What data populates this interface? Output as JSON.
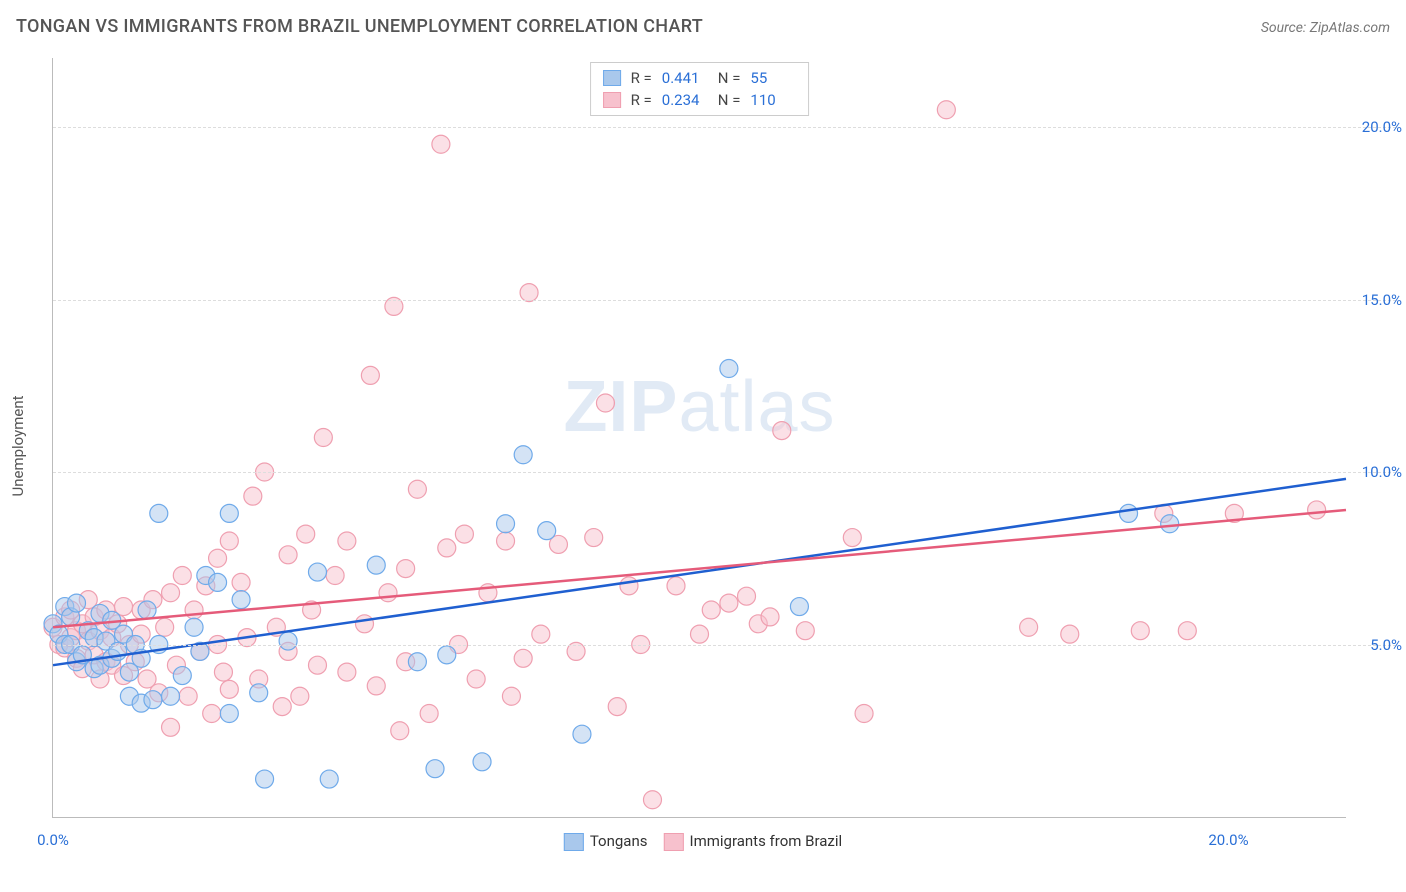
{
  "chart": {
    "type": "scatter",
    "title": "TONGAN VS IMMIGRANTS FROM BRAZIL UNEMPLOYMENT CORRELATION CHART",
    "source": "Source: ZipAtlas.com",
    "ylabel": "Unemployment",
    "watermark": {
      "zip": "ZIP",
      "atlas": "atlas"
    },
    "background_color": "#ffffff",
    "grid_color": "#dddddd",
    "axis_color": "#bbbbbb",
    "tick_label_color": "#2a6fd6",
    "title_color": "#555555",
    "xlim": [
      0,
      22
    ],
    "ylim": [
      0,
      22
    ],
    "yticks": [
      {
        "v": 5,
        "label": "5.0%"
      },
      {
        "v": 10,
        "label": "10.0%"
      },
      {
        "v": 15,
        "label": "15.0%"
      },
      {
        "v": 20,
        "label": "20.0%"
      }
    ],
    "xticks": [
      {
        "v": 0,
        "label": "0.0%"
      },
      {
        "v": 20,
        "label": "20.0%"
      }
    ],
    "marker_radius": 9,
    "marker_opacity": 0.5,
    "line_width": 2.5,
    "series": [
      {
        "id": "tongans",
        "label": "Tongans",
        "fill": "#a9c8ec",
        "stroke": "#6faaea",
        "line_color": "#1f5fd0",
        "R": "0.441",
        "N": "55",
        "trend": {
          "x1": 0,
          "y1": 4.4,
          "x2": 22,
          "y2": 9.8
        },
        "points": [
          [
            0.0,
            5.6
          ],
          [
            0.1,
            5.3
          ],
          [
            0.2,
            6.1
          ],
          [
            0.2,
            5.0
          ],
          [
            0.3,
            5.8
          ],
          [
            0.3,
            5.0
          ],
          [
            0.4,
            4.5
          ],
          [
            0.4,
            6.2
          ],
          [
            0.5,
            4.7
          ],
          [
            0.6,
            5.4
          ],
          [
            0.7,
            5.2
          ],
          [
            0.7,
            4.3
          ],
          [
            0.8,
            5.9
          ],
          [
            0.8,
            4.4
          ],
          [
            0.9,
            5.1
          ],
          [
            1.0,
            4.6
          ],
          [
            1.0,
            5.7
          ],
          [
            1.1,
            4.8
          ],
          [
            1.2,
            5.3
          ],
          [
            1.3,
            4.2
          ],
          [
            1.3,
            3.5
          ],
          [
            1.4,
            5.0
          ],
          [
            1.5,
            3.3
          ],
          [
            1.5,
            4.6
          ],
          [
            1.6,
            6.0
          ],
          [
            1.7,
            3.4
          ],
          [
            1.8,
            5.0
          ],
          [
            1.8,
            8.8
          ],
          [
            2.0,
            3.5
          ],
          [
            2.2,
            4.1
          ],
          [
            2.4,
            5.5
          ],
          [
            2.5,
            4.8
          ],
          [
            2.6,
            7.0
          ],
          [
            2.8,
            6.8
          ],
          [
            3.0,
            3.0
          ],
          [
            3.0,
            8.8
          ],
          [
            3.2,
            6.3
          ],
          [
            3.5,
            3.6
          ],
          [
            3.6,
            1.1
          ],
          [
            4.0,
            5.1
          ],
          [
            4.5,
            7.1
          ],
          [
            4.7,
            1.1
          ],
          [
            5.5,
            7.3
          ],
          [
            6.2,
            4.5
          ],
          [
            6.5,
            1.4
          ],
          [
            6.7,
            4.7
          ],
          [
            7.3,
            1.6
          ],
          [
            7.7,
            8.5
          ],
          [
            8.0,
            10.5
          ],
          [
            8.4,
            8.3
          ],
          [
            9.0,
            2.4
          ],
          [
            11.5,
            13.0
          ],
          [
            12.7,
            6.1
          ],
          [
            18.3,
            8.8
          ],
          [
            19.0,
            8.5
          ]
        ]
      },
      {
        "id": "brazil",
        "label": "Immigrants from Brazil",
        "fill": "#f7c1cd",
        "stroke": "#ef9fb0",
        "line_color": "#e55b7a",
        "R": "0.234",
        "N": "110",
        "trend": {
          "x1": 0,
          "y1": 5.5,
          "x2": 22,
          "y2": 8.9
        },
        "points": [
          [
            0.0,
            5.5
          ],
          [
            0.1,
            5.0
          ],
          [
            0.2,
            5.8
          ],
          [
            0.2,
            4.9
          ],
          [
            0.3,
            5.2
          ],
          [
            0.3,
            6.0
          ],
          [
            0.4,
            5.4
          ],
          [
            0.4,
            4.6
          ],
          [
            0.5,
            5.6
          ],
          [
            0.5,
            4.3
          ],
          [
            0.6,
            5.1
          ],
          [
            0.6,
            6.3
          ],
          [
            0.7,
            4.7
          ],
          [
            0.7,
            5.8
          ],
          [
            0.8,
            4.0
          ],
          [
            0.8,
            5.4
          ],
          [
            0.9,
            4.5
          ],
          [
            0.9,
            6.0
          ],
          [
            1.0,
            5.2
          ],
          [
            1.0,
            4.4
          ],
          [
            1.1,
            5.6
          ],
          [
            1.2,
            4.1
          ],
          [
            1.2,
            6.1
          ],
          [
            1.3,
            5.0
          ],
          [
            1.4,
            4.5
          ],
          [
            1.5,
            6.0
          ],
          [
            1.5,
            5.3
          ],
          [
            1.6,
            4.0
          ],
          [
            1.7,
            6.3
          ],
          [
            1.8,
            3.6
          ],
          [
            1.9,
            5.5
          ],
          [
            2.0,
            2.6
          ],
          [
            2.0,
            6.5
          ],
          [
            2.1,
            4.4
          ],
          [
            2.2,
            7.0
          ],
          [
            2.3,
            3.5
          ],
          [
            2.4,
            6.0
          ],
          [
            2.5,
            4.8
          ],
          [
            2.6,
            6.7
          ],
          [
            2.7,
            3.0
          ],
          [
            2.8,
            7.5
          ],
          [
            2.8,
            5.0
          ],
          [
            2.9,
            4.2
          ],
          [
            3.0,
            8.0
          ],
          [
            3.0,
            3.7
          ],
          [
            3.2,
            6.8
          ],
          [
            3.3,
            5.2
          ],
          [
            3.4,
            9.3
          ],
          [
            3.5,
            4.0
          ],
          [
            3.6,
            10.0
          ],
          [
            3.8,
            5.5
          ],
          [
            3.9,
            3.2
          ],
          [
            4.0,
            7.6
          ],
          [
            4.0,
            4.8
          ],
          [
            4.2,
            3.5
          ],
          [
            4.3,
            8.2
          ],
          [
            4.4,
            6.0
          ],
          [
            4.5,
            4.4
          ],
          [
            4.6,
            11.0
          ],
          [
            4.8,
            7.0
          ],
          [
            5.0,
            4.2
          ],
          [
            5.0,
            8.0
          ],
          [
            5.3,
            5.6
          ],
          [
            5.4,
            12.8
          ],
          [
            5.5,
            3.8
          ],
          [
            5.7,
            6.5
          ],
          [
            5.8,
            14.8
          ],
          [
            5.9,
            2.5
          ],
          [
            6.0,
            7.2
          ],
          [
            6.0,
            4.5
          ],
          [
            6.2,
            9.5
          ],
          [
            6.4,
            3.0
          ],
          [
            6.6,
            19.5
          ],
          [
            6.7,
            7.8
          ],
          [
            6.9,
            5.0
          ],
          [
            7.0,
            8.2
          ],
          [
            7.2,
            4.0
          ],
          [
            7.4,
            6.5
          ],
          [
            7.7,
            8.0
          ],
          [
            7.8,
            3.5
          ],
          [
            8.0,
            4.6
          ],
          [
            8.1,
            15.2
          ],
          [
            8.3,
            5.3
          ],
          [
            8.6,
            7.9
          ],
          [
            8.9,
            4.8
          ],
          [
            9.2,
            8.1
          ],
          [
            9.4,
            12.0
          ],
          [
            9.6,
            3.2
          ],
          [
            9.8,
            6.7
          ],
          [
            10.0,
            5.0
          ],
          [
            10.2,
            0.5
          ],
          [
            10.6,
            6.7
          ],
          [
            11.0,
            5.3
          ],
          [
            11.2,
            6.0
          ],
          [
            11.5,
            6.2
          ],
          [
            11.8,
            6.4
          ],
          [
            12.0,
            5.6
          ],
          [
            12.2,
            5.8
          ],
          [
            12.4,
            11.2
          ],
          [
            12.8,
            5.4
          ],
          [
            13.6,
            8.1
          ],
          [
            13.8,
            3.0
          ],
          [
            15.2,
            20.5
          ],
          [
            16.6,
            5.5
          ],
          [
            17.3,
            5.3
          ],
          [
            18.5,
            5.4
          ],
          [
            18.9,
            8.8
          ],
          [
            19.3,
            5.4
          ],
          [
            20.1,
            8.8
          ],
          [
            21.5,
            8.9
          ]
        ]
      }
    ]
  }
}
